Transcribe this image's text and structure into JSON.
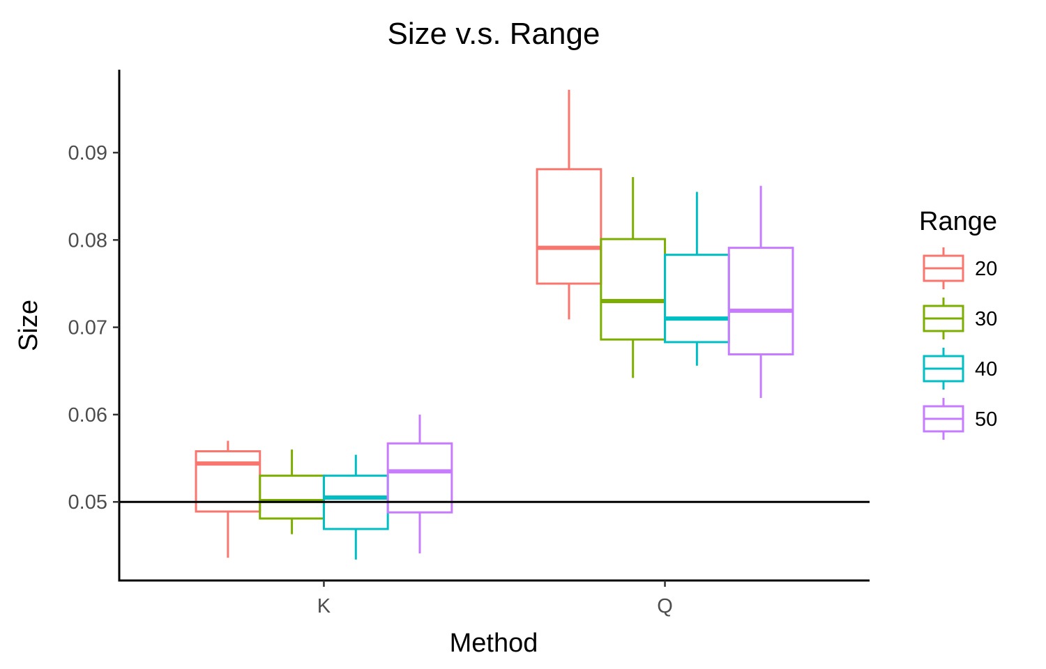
{
  "chart_data": {
    "type": "boxplot",
    "title": "Size v.s. Range",
    "xlabel": "Method",
    "ylabel": "Size",
    "categories": [
      "K",
      "Q"
    ],
    "ylim": [
      0.041,
      0.0995
    ],
    "yticks": [
      0.05,
      0.06,
      0.07,
      0.08,
      0.09
    ],
    "ytick_labels": [
      "0.05",
      "0.06",
      "0.07",
      "0.08",
      "0.09"
    ],
    "reference_line": 0.05,
    "grid": false,
    "legend": {
      "title": "Range",
      "position": "right",
      "entries": [
        "20",
        "30",
        "40",
        "50"
      ]
    },
    "series": [
      {
        "name": "20",
        "color": "#F8766D",
        "boxes": [
          {
            "category": "K",
            "whisker_low": 0.0436,
            "q1": 0.0489,
            "median": 0.0544,
            "q3": 0.0558,
            "whisker_high": 0.057
          },
          {
            "category": "Q",
            "whisker_low": 0.0709,
            "q1": 0.075,
            "median": 0.0791,
            "q3": 0.0881,
            "whisker_high": 0.0972
          }
        ]
      },
      {
        "name": "30",
        "color": "#7CAE00",
        "boxes": [
          {
            "category": "K",
            "whisker_low": 0.0463,
            "q1": 0.0481,
            "median": 0.0501,
            "q3": 0.053,
            "whisker_high": 0.056
          },
          {
            "category": "Q",
            "whisker_low": 0.0642,
            "q1": 0.0686,
            "median": 0.073,
            "q3": 0.0801,
            "whisker_high": 0.0872
          }
        ]
      },
      {
        "name": "40",
        "color": "#00BFC4",
        "boxes": [
          {
            "category": "K",
            "whisker_low": 0.0434,
            "q1": 0.0469,
            "median": 0.0505,
            "q3": 0.053,
            "whisker_high": 0.0554
          },
          {
            "category": "Q",
            "whisker_low": 0.0656,
            "q1": 0.0683,
            "median": 0.071,
            "q3": 0.0783,
            "whisker_high": 0.0855
          }
        ]
      },
      {
        "name": "50",
        "color": "#C77CFF",
        "boxes": [
          {
            "category": "K",
            "whisker_low": 0.0441,
            "q1": 0.0488,
            "median": 0.0535,
            "q3": 0.0567,
            "whisker_high": 0.06
          },
          {
            "category": "Q",
            "whisker_low": 0.0619,
            "q1": 0.0669,
            "median": 0.0719,
            "q3": 0.0791,
            "whisker_high": 0.0862
          }
        ]
      }
    ]
  }
}
